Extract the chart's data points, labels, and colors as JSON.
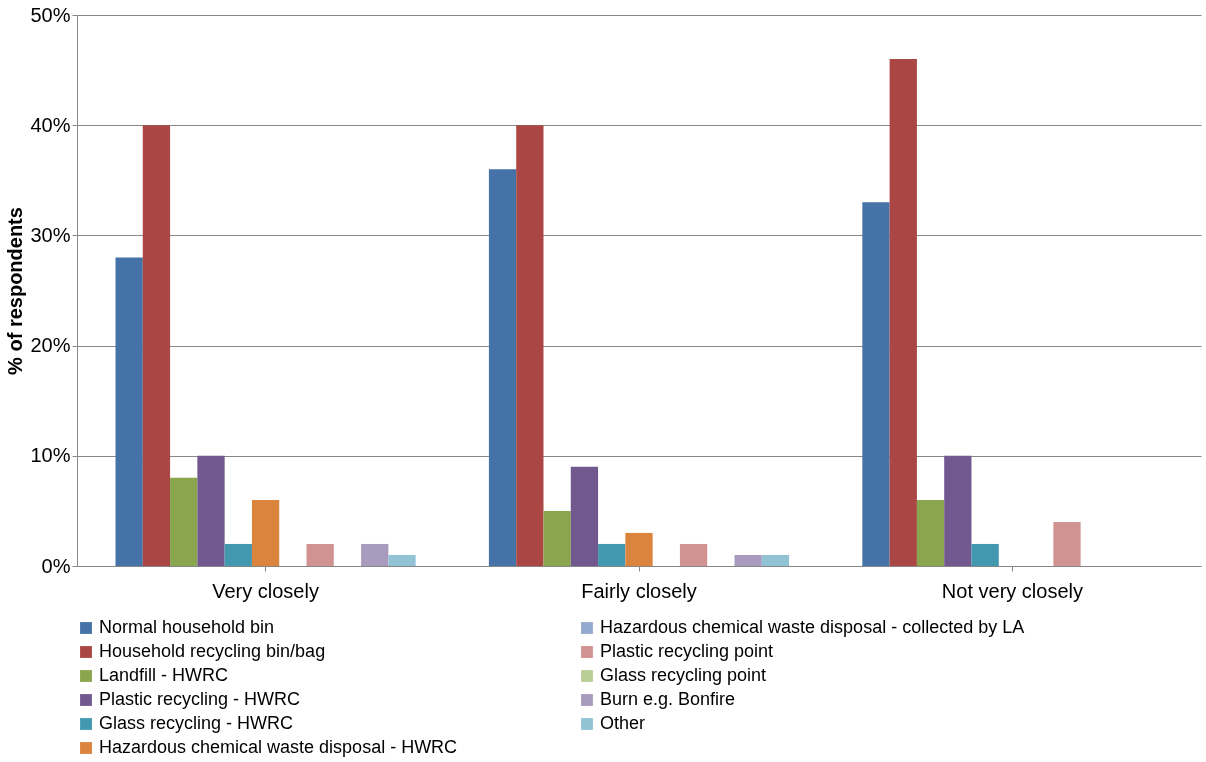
{
  "chart_data": {
    "type": "bar",
    "ylabel": "% of respondents",
    "categories": [
      "Very closely",
      "Fairly closely",
      "Not very closely"
    ],
    "ylim": [
      0,
      50
    ],
    "yticks": [
      {
        "value": 0,
        "label": "0%"
      },
      {
        "value": 10,
        "label": "10%"
      },
      {
        "value": 20,
        "label": "20%"
      },
      {
        "value": 30,
        "label": "30%"
      },
      {
        "value": 40,
        "label": "40%"
      },
      {
        "value": 50,
        "label": "50%"
      }
    ],
    "grid": "y",
    "legend": "bottom",
    "series": [
      {
        "name": "Normal household bin",
        "color": "#4572a7",
        "values": [
          28,
          36,
          33
        ]
      },
      {
        "name": "Household recycling bin/bag",
        "color": "#aa4643",
        "values": [
          40,
          40,
          46
        ]
      },
      {
        "name": "Landfill - HWRC",
        "color": "#89a54e",
        "values": [
          8,
          5,
          6
        ]
      },
      {
        "name": "Plastic recycling - HWRC",
        "color": "#71588f",
        "values": [
          10,
          9,
          10
        ]
      },
      {
        "name": "Glass recycling - HWRC",
        "color": "#4198af",
        "values": [
          2,
          2,
          2
        ]
      },
      {
        "name": "Hazardous chemical waste disposal - HWRC",
        "color": "#db843d",
        "values": [
          6,
          3,
          0
        ]
      },
      {
        "name": "Hazardous chemical waste disposal - collected by LA",
        "color": "#93a9cf",
        "values": [
          0,
          0,
          0
        ]
      },
      {
        "name": "Plastic recycling point",
        "color": "#d19392",
        "values": [
          2,
          2,
          4
        ]
      },
      {
        "name": "Glass recycling point",
        "color": "#b9cd96",
        "values": [
          0,
          0,
          0
        ]
      },
      {
        "name": "Burn e.g. Bonfire",
        "color": "#a99bbd",
        "values": [
          2,
          1,
          0
        ]
      },
      {
        "name": "Other",
        "color": "#92c3d5",
        "values": [
          1,
          1,
          0
        ]
      }
    ]
  }
}
